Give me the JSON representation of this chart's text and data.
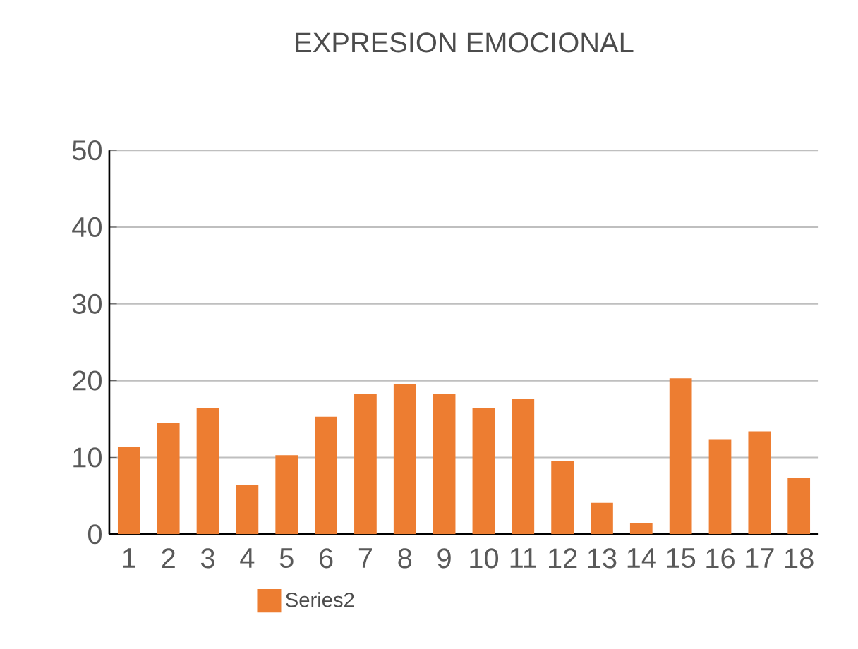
{
  "chart_data": {
    "type": "bar",
    "title": "EXPRESION EMOCIONAL",
    "categories": [
      "1",
      "2",
      "3",
      "4",
      "5",
      "6",
      "7",
      "8",
      "9",
      "10",
      "11",
      "12",
      "13",
      "14",
      "15",
      "16",
      "17",
      "18"
    ],
    "series": [
      {
        "name": "Series2",
        "color": "#ed7d31",
        "values": [
          11.4,
          14.5,
          16.4,
          6.4,
          10.3,
          15.3,
          18.3,
          19.6,
          18.3,
          16.4,
          17.6,
          9.5,
          4.1,
          1.4,
          20.3,
          12.3,
          13.4,
          7.3
        ]
      }
    ],
    "ylim": [
      0,
      50
    ],
    "yticks": [
      0,
      10,
      20,
      30,
      40,
      50
    ],
    "grid": "y",
    "legend": "bottom"
  }
}
